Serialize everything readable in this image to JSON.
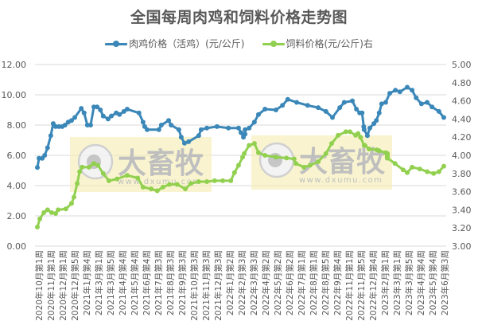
{
  "chart_data": {
    "type": "line",
    "title": "全国每周肉鸡和饲料价格走势图",
    "xlabel": "",
    "ylabel": "",
    "y2label": "",
    "ylim": [
      0,
      12
    ],
    "y2lim": [
      3.0,
      5.0
    ],
    "grid": true,
    "legend_position": "top",
    "y_ticks": [
      "0.00",
      "2.00",
      "4.00",
      "6.00",
      "8.00",
      "10.00",
      "12.00"
    ],
    "y2_ticks": [
      "3.00",
      "3.20",
      "3.40",
      "3.60",
      "3.80",
      "4.00",
      "4.20",
      "4.40",
      "4.60",
      "4.80",
      "5.00"
    ],
    "categories": [
      "2020年10月第1周",
      "2020年11月第1周",
      "2020年12月第1周",
      "2020年12月第5周",
      "2021年1月第4周",
      "2021年3月第1周",
      "2021年3月第5周",
      "2021年4月第4周",
      "2021年5月第4周",
      "2021年6月第4周",
      "2021年7月第3周",
      "2021年8月第3周",
      "2021年9月第3周",
      "2021年10月第3周",
      "2021年11月第3周",
      "2021年12月第3周",
      "2022年1月第2周",
      "2022年2月第3周",
      "2022年3月第3周",
      "2022年4月第2周",
      "2022年5月第2周",
      "2022年6月第2周",
      "2022年7月第1周",
      "2022年8月第1周",
      "2022年8月第5周",
      "2022年9月第4周",
      "2022年11月第1周",
      "2022年11月第5周",
      "2022年12月第4周",
      "2023年2月第1周",
      "2023年3月第1周",
      "2023年3月第5周",
      "2023年4月第4周",
      "2023年5月第4周",
      "2023年6月第3周"
    ],
    "x_note": "x values are fractional positions 0..1 across the plotted date range (first to last week)",
    "series": [
      {
        "name": "肉鸡价格（活鸡）(元/公斤)",
        "axis": "left",
        "color": "#3a87b8",
        "points": [
          [
            0.0,
            5.2
          ],
          [
            0.004,
            5.8
          ],
          [
            0.012,
            5.8
          ],
          [
            0.018,
            6.0
          ],
          [
            0.025,
            6.5
          ],
          [
            0.033,
            7.3
          ],
          [
            0.039,
            8.1
          ],
          [
            0.045,
            7.9
          ],
          [
            0.053,
            7.9
          ],
          [
            0.061,
            7.9
          ],
          [
            0.068,
            8.0
          ],
          [
            0.076,
            8.2
          ],
          [
            0.084,
            8.3
          ],
          [
            0.092,
            8.5
          ],
          [
            0.108,
            9.1
          ],
          [
            0.115,
            8.8
          ],
          [
            0.123,
            8.0
          ],
          [
            0.131,
            8.0
          ],
          [
            0.139,
            9.2
          ],
          [
            0.147,
            9.2
          ],
          [
            0.155,
            9.0
          ],
          [
            0.162,
            8.6
          ],
          [
            0.174,
            8.4
          ],
          [
            0.182,
            8.6
          ],
          [
            0.194,
            8.8
          ],
          [
            0.202,
            8.7
          ],
          [
            0.213,
            8.9
          ],
          [
            0.221,
            9.05
          ],
          [
            0.25,
            8.8
          ],
          [
            0.26,
            8.2
          ],
          [
            0.264,
            7.9
          ],
          [
            0.27,
            7.7
          ],
          [
            0.299,
            7.7
          ],
          [
            0.305,
            8.0
          ],
          [
            0.323,
            8.3
          ],
          [
            0.329,
            8.0
          ],
          [
            0.348,
            7.7
          ],
          [
            0.354,
            7.2
          ],
          [
            0.362,
            6.8
          ],
          [
            0.372,
            6.9
          ],
          [
            0.397,
            7.3
          ],
          [
            0.403,
            7.7
          ],
          [
            0.417,
            7.8
          ],
          [
            0.442,
            7.9
          ],
          [
            0.47,
            7.8
          ],
          [
            0.495,
            7.8
          ],
          [
            0.501,
            7.5
          ],
          [
            0.507,
            7.2
          ],
          [
            0.511,
            7.4
          ],
          [
            0.511,
            7.7
          ],
          [
            0.521,
            7.8
          ],
          [
            0.534,
            8.2
          ],
          [
            0.544,
            8.7
          ],
          [
            0.56,
            9.05
          ],
          [
            0.587,
            9.0
          ],
          [
            0.603,
            9.3
          ],
          [
            0.616,
            9.7
          ],
          [
            0.638,
            9.5
          ],
          [
            0.665,
            9.3
          ],
          [
            0.691,
            9.15
          ],
          [
            0.71,
            8.9
          ],
          [
            0.726,
            8.5
          ],
          [
            0.744,
            9.15
          ],
          [
            0.755,
            9.5
          ],
          [
            0.775,
            9.6
          ],
          [
            0.785,
            9.05
          ],
          [
            0.793,
            8.8
          ],
          [
            0.799,
            8.8
          ],
          [
            0.803,
            7.9
          ],
          [
            0.804,
            7.7
          ],
          [
            0.812,
            7.3
          ],
          [
            0.818,
            7.8
          ],
          [
            0.828,
            8.1
          ],
          [
            0.834,
            8.3
          ],
          [
            0.841,
            8.8
          ],
          [
            0.847,
            9.4
          ],
          [
            0.857,
            9.5
          ],
          [
            0.867,
            10.1
          ],
          [
            0.881,
            10.3
          ],
          [
            0.892,
            10.2
          ],
          [
            0.91,
            10.5
          ],
          [
            0.922,
            10.3
          ],
          [
            0.932,
            9.8
          ],
          [
            0.945,
            9.4
          ],
          [
            0.959,
            9.5
          ],
          [
            0.971,
            9.2
          ],
          [
            0.988,
            8.9
          ],
          [
            1.0,
            8.5
          ]
        ]
      },
      {
        "name": "饲料价格(元/公斤)右",
        "axis": "right",
        "color": "#92d050",
        "points": [
          [
            0.0,
            3.21
          ],
          [
            0.006,
            3.3
          ],
          [
            0.016,
            3.37
          ],
          [
            0.025,
            3.4
          ],
          [
            0.035,
            3.37
          ],
          [
            0.045,
            3.36
          ],
          [
            0.051,
            3.4
          ],
          [
            0.07,
            3.41
          ],
          [
            0.084,
            3.47
          ],
          [
            0.09,
            3.54
          ],
          [
            0.098,
            3.69
          ],
          [
            0.104,
            3.82
          ],
          [
            0.11,
            3.87
          ],
          [
            0.127,
            3.87
          ],
          [
            0.139,
            3.91
          ],
          [
            0.149,
            3.89
          ],
          [
            0.162,
            3.8
          ],
          [
            0.176,
            3.72
          ],
          [
            0.196,
            3.74
          ],
          [
            0.221,
            3.78
          ],
          [
            0.247,
            3.75
          ],
          [
            0.26,
            3.65
          ],
          [
            0.28,
            3.63
          ],
          [
            0.295,
            3.61
          ],
          [
            0.309,
            3.65
          ],
          [
            0.325,
            3.68
          ],
          [
            0.344,
            3.68
          ],
          [
            0.364,
            3.63
          ],
          [
            0.378,
            3.69
          ],
          [
            0.397,
            3.71
          ],
          [
            0.417,
            3.71
          ],
          [
            0.436,
            3.72
          ],
          [
            0.456,
            3.72
          ],
          [
            0.476,
            3.72
          ],
          [
            0.485,
            3.81
          ],
          [
            0.495,
            3.89
          ],
          [
            0.505,
            3.98
          ],
          [
            0.509,
            4.02
          ],
          [
            0.521,
            4.11
          ],
          [
            0.534,
            4.13
          ],
          [
            0.544,
            4.03
          ],
          [
            0.56,
            4.0
          ],
          [
            0.587,
            3.98
          ],
          [
            0.613,
            3.97
          ],
          [
            0.632,
            3.96
          ],
          [
            0.636,
            3.91
          ],
          [
            0.656,
            3.87
          ],
          [
            0.671,
            3.89
          ],
          [
            0.691,
            3.93
          ],
          [
            0.71,
            4.02
          ],
          [
            0.724,
            4.13
          ],
          [
            0.74,
            4.22
          ],
          [
            0.759,
            4.26
          ],
          [
            0.769,
            4.26
          ],
          [
            0.789,
            4.24
          ],
          [
            0.783,
            4.22
          ],
          [
            0.795,
            4.2
          ],
          [
            0.795,
            4.2
          ],
          [
            0.806,
            4.11
          ],
          [
            0.804,
            4.11
          ],
          [
            0.816,
            4.07
          ],
          [
            0.835,
            4.06
          ],
          [
            0.841,
            4.05
          ],
          [
            0.857,
            4.03
          ],
          [
            0.861,
            4.02
          ],
          [
            0.861,
            4.02
          ],
          [
            0.861,
            4.01
          ],
          [
            0.861,
            4.01
          ],
          [
            0.861,
            4.0
          ],
          [
            0.861,
            4.0
          ],
          [
            0.861,
            3.99
          ],
          [
            0.861,
            3.98
          ],
          [
            0.861,
            3.98
          ],
          [
            0.861,
            3.98
          ],
          [
            0.861,
            3.97
          ],
          [
            0.861,
            3.97
          ],
          [
            0.861,
            3.97
          ],
          [
            0.861,
            3.97
          ],
          [
            0.861,
            3.97
          ],
          [
            0.861,
            3.97
          ],
          [
            0.861,
            3.97
          ],
          [
            0.861,
            3.97
          ],
          [
            0.861,
            3.97
          ],
          [
            0.861,
            3.97
          ],
          [
            0.861,
            3.97
          ],
          [
            0.88,
            3.91
          ],
          [
            0.9,
            3.84
          ],
          [
            0.91,
            3.81
          ],
          [
            0.922,
            3.87
          ],
          [
            0.941,
            3.85
          ],
          [
            0.959,
            3.82
          ],
          [
            0.975,
            3.8
          ],
          [
            0.988,
            3.82
          ],
          [
            1.0,
            3.88
          ]
        ]
      }
    ]
  },
  "watermarks": [
    {
      "text": "大畜牧",
      "url_text": "www.dxumu.com"
    },
    {
      "text": "大畜牧",
      "url_text": "www.dxumu.com"
    }
  ],
  "colors": {
    "blue": "#3a87b8",
    "green": "#92d050",
    "grid": "#d9d9d9",
    "axis_text": "#595959",
    "watermark_bg": "#f5edb4"
  }
}
